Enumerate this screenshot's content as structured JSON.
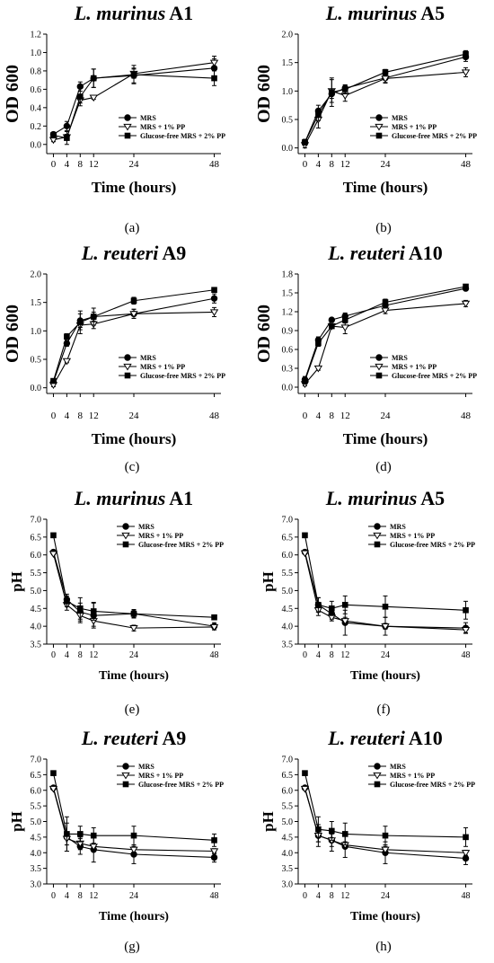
{
  "legend_labels": [
    "MRS",
    "MRS + 1% PP",
    "Glucose-free MRS + 2% PP"
  ],
  "chart_data": [
    {
      "type": "line",
      "panel": "(a)",
      "title": "L. murinus A1",
      "title_species": "L. murinus",
      "title_strain": "A1",
      "xlabel": "Time (hours)",
      "ylabel": "OD 600",
      "x": [
        0,
        4,
        8,
        12,
        24,
        48
      ],
      "xlim": [
        -2,
        50
      ],
      "ylim": [
        -0.1,
        1.2
      ],
      "yticks": [
        "0.0",
        "0.2",
        "0.4",
        "0.6",
        "0.8",
        "1.0",
        "1.2"
      ],
      "ytick_values": [
        0,
        0.2,
        0.4,
        0.6,
        0.8,
        1.0,
        1.2
      ],
      "legend_position": "lower-right",
      "series": [
        {
          "name": "MRS",
          "marker": "circle",
          "values": [
            0.11,
            0.2,
            0.63,
            0.72,
            0.75,
            0.83
          ],
          "errors": [
            0.02,
            0.05,
            0.05,
            0.1,
            0.08,
            0.1
          ]
        },
        {
          "name": "MRS + 1% PP",
          "marker": "triangle-down",
          "values": [
            0.05,
            0.08,
            0.48,
            0.51,
            0.77,
            0.89
          ],
          "errors": [
            0.02,
            0.03,
            0.03,
            0.02,
            0.05,
            0.07
          ]
        },
        {
          "name": "Glucose-free MRS + 2% PP",
          "marker": "square",
          "values": [
            0.1,
            0.07,
            0.52,
            0.72,
            0.76,
            0.72
          ],
          "errors": [
            0.03,
            0.07,
            0.1,
            0.1,
            0.1,
            0.08
          ]
        }
      ]
    },
    {
      "type": "line",
      "panel": "(b)",
      "title": "L. murinus A5",
      "title_species": "L. murinus",
      "title_strain": "A5",
      "xlabel": "Time (hours)",
      "ylabel": "OD 600",
      "x": [
        0,
        4,
        8,
        12,
        24,
        48
      ],
      "xlim": [
        -2,
        50
      ],
      "ylim": [
        -0.1,
        2.0
      ],
      "yticks": [
        "0.0",
        "0.5",
        "1.0",
        "1.5",
        "2.0"
      ],
      "ytick_values": [
        0,
        0.5,
        1.0,
        1.5,
        2.0
      ],
      "legend_position": "lower-right",
      "series": [
        {
          "name": "MRS",
          "marker": "circle",
          "values": [
            0.1,
            0.65,
            0.95,
            1.05,
            1.23,
            1.6
          ],
          "errors": [
            0.05,
            0.1,
            0.08,
            0.05,
            0.08,
            0.08
          ]
        },
        {
          "name": "MRS + 1% PP",
          "marker": "triangle-down",
          "values": [
            0.05,
            0.5,
            1.0,
            0.92,
            1.22,
            1.33
          ],
          "errors": [
            0.05,
            0.15,
            0.2,
            0.1,
            0.08,
            0.08
          ]
        },
        {
          "name": "Glucose-free MRS + 2% PP",
          "marker": "square",
          "values": [
            0.1,
            0.58,
            0.98,
            1.03,
            1.33,
            1.65
          ],
          "errors": [
            0.05,
            0.1,
            0.25,
            0.08,
            0.05,
            0.06
          ]
        }
      ]
    },
    {
      "type": "line",
      "panel": "(c)",
      "title": "L. reuteri A9",
      "title_species": "L. reuteri",
      "title_strain": "A9",
      "xlabel": "Time (hours)",
      "ylabel": "OD 600",
      "x": [
        0,
        4,
        8,
        12,
        24,
        48
      ],
      "xlim": [
        -2,
        50
      ],
      "ylim": [
        -0.1,
        2.0
      ],
      "yticks": [
        "0.0",
        "0.5",
        "1.0",
        "1.5",
        "2.0"
      ],
      "ytick_values": [
        0,
        0.5,
        1.0,
        1.5,
        2.0
      ],
      "legend_position": "lower-right",
      "series": [
        {
          "name": "MRS",
          "marker": "circle",
          "values": [
            0.1,
            0.78,
            1.18,
            1.25,
            1.3,
            1.57
          ],
          "errors": [
            0.05,
            0.05,
            0.12,
            0.08,
            0.08,
            0.08
          ]
        },
        {
          "name": "MRS + 1% PP",
          "marker": "triangle-down",
          "values": [
            0.05,
            0.47,
            1.1,
            1.12,
            1.3,
            1.33
          ],
          "errors": [
            0.03,
            0.03,
            0.08,
            0.08,
            0.08,
            0.08
          ]
        },
        {
          "name": "Glucose-free MRS + 2% PP",
          "marker": "square",
          "values": [
            0.12,
            0.9,
            1.15,
            1.25,
            1.53,
            1.72
          ],
          "errors": [
            0.03,
            0.05,
            0.2,
            0.15,
            0.06,
            0.03
          ]
        }
      ]
    },
    {
      "type": "line",
      "panel": "(d)",
      "title": "L. reuteri A10",
      "title_species": "L. reuteri",
      "title_strain": "A10",
      "xlabel": "Time (hours)",
      "ylabel": "OD 600",
      "x": [
        0,
        4,
        8,
        12,
        24,
        48
      ],
      "xlim": [
        -2,
        50
      ],
      "ylim": [
        -0.1,
        1.8
      ],
      "yticks": [
        "0.0",
        "0.3",
        "0.6",
        "0.9",
        "1.2",
        "1.5",
        "1.8"
      ],
      "ytick_values": [
        0,
        0.3,
        0.6,
        0.9,
        1.2,
        1.5,
        1.8
      ],
      "legend_position": "lower-right",
      "series": [
        {
          "name": "MRS",
          "marker": "circle",
          "values": [
            0.12,
            0.75,
            1.07,
            1.13,
            1.3,
            1.57
          ],
          "errors": [
            0.05,
            0.05,
            0.03,
            0.05,
            0.05,
            0.03
          ]
        },
        {
          "name": "MRS + 1% PP",
          "marker": "triangle-down",
          "values": [
            0.05,
            0.3,
            0.97,
            0.95,
            1.22,
            1.33
          ],
          "errors": [
            0.03,
            0.03,
            0.03,
            0.1,
            0.05,
            0.05
          ]
        },
        {
          "name": "Glucose-free MRS + 2% PP",
          "marker": "square",
          "values": [
            0.1,
            0.7,
            0.97,
            1.07,
            1.35,
            1.6
          ],
          "errors": [
            0.05,
            0.05,
            0.03,
            0.05,
            0.05,
            0.03
          ]
        }
      ]
    },
    {
      "type": "line",
      "panel": "(e)",
      "title": "L. murinus A1",
      "title_species": "L. murinus",
      "title_strain": "A1",
      "xlabel": "Time (hours)",
      "ylabel": "pH",
      "x": [
        0,
        4,
        8,
        12,
        24,
        48
      ],
      "xlim": [
        -2,
        50
      ],
      "ylim": [
        3.5,
        7.0
      ],
      "yticks": [
        "3.5",
        "4.0",
        "4.5",
        "5.0",
        "5.5",
        "6.0",
        "6.5",
        "7.0"
      ],
      "ytick_values": [
        3.5,
        4.0,
        4.5,
        5.0,
        5.5,
        6.0,
        6.5,
        7.0
      ],
      "legend_position": "top-right",
      "series": [
        {
          "name": "MRS",
          "marker": "circle",
          "values": [
            6.08,
            4.75,
            4.4,
            4.3,
            4.35,
            4.0
          ],
          "errors": [
            0.03,
            0.15,
            0.25,
            0.35,
            0.12,
            0.1
          ]
        },
        {
          "name": "MRS + 1% PP",
          "marker": "triangle-down",
          "values": [
            6.03,
            4.6,
            4.3,
            4.15,
            3.95,
            3.98
          ],
          "errors": [
            0.03,
            0.15,
            0.2,
            0.15,
            0.08,
            0.08
          ]
        },
        {
          "name": "Glucose-free MRS + 2% PP",
          "marker": "square",
          "values": [
            6.55,
            4.7,
            4.5,
            4.42,
            4.35,
            4.25
          ],
          "errors": [
            0.03,
            0.15,
            0.3,
            0.25,
            0.1,
            0.05
          ]
        }
      ]
    },
    {
      "type": "line",
      "panel": "(f)",
      "title": "L. murinus A5",
      "title_species": "L. murinus",
      "title_strain": "A5",
      "xlabel": "Time (hours)",
      "ylabel": "pH",
      "x": [
        0,
        4,
        8,
        12,
        24,
        48
      ],
      "xlim": [
        -2,
        50
      ],
      "ylim": [
        3.5,
        7.0
      ],
      "yticks": [
        "3.5",
        "4.0",
        "4.5",
        "5.0",
        "5.5",
        "6.0",
        "6.5",
        "7.0"
      ],
      "ytick_values": [
        3.5,
        4.0,
        4.5,
        5.0,
        5.5,
        6.0,
        6.5,
        7.0
      ],
      "legend_position": "top-right",
      "series": [
        {
          "name": "MRS",
          "marker": "circle",
          "values": [
            6.08,
            4.6,
            4.35,
            4.1,
            4.0,
            3.95
          ],
          "errors": [
            0.03,
            0.2,
            0.15,
            0.35,
            0.25,
            0.15
          ]
        },
        {
          "name": "MRS + 1% PP",
          "marker": "triangle-down",
          "values": [
            6.05,
            4.45,
            4.25,
            4.15,
            4.0,
            3.9
          ],
          "errors": [
            0.03,
            0.15,
            0.1,
            0.1,
            0.08,
            0.08
          ]
        },
        {
          "name": "Glucose-free MRS + 2% PP",
          "marker": "square",
          "values": [
            6.55,
            4.6,
            4.5,
            4.6,
            4.55,
            4.45
          ],
          "errors": [
            0.03,
            0.2,
            0.2,
            0.25,
            0.3,
            0.25
          ]
        }
      ]
    },
    {
      "type": "line",
      "panel": "(g)",
      "title": "L. reuteri A9",
      "title_species": "L. reuteri",
      "title_strain": "A9",
      "xlabel": "Time (hours)",
      "ylabel": "pH",
      "x": [
        0,
        4,
        8,
        12,
        24,
        48
      ],
      "xlim": [
        -2,
        50
      ],
      "ylim": [
        3.0,
        7.0
      ],
      "yticks": [
        "3.0",
        "3.5",
        "4.0",
        "4.5",
        "5.0",
        "5.5",
        "6.0",
        "6.5",
        "7.0"
      ],
      "ytick_values": [
        3.0,
        3.5,
        4.0,
        4.5,
        5.0,
        5.5,
        6.0,
        6.5,
        7.0
      ],
      "legend_position": "top-right",
      "series": [
        {
          "name": "MRS",
          "marker": "circle",
          "values": [
            6.08,
            4.5,
            4.2,
            4.1,
            3.95,
            3.85
          ],
          "errors": [
            0.03,
            0.45,
            0.25,
            0.4,
            0.3,
            0.15
          ]
        },
        {
          "name": "MRS + 1% PP",
          "marker": "triangle-down",
          "values": [
            6.05,
            4.45,
            4.3,
            4.2,
            4.1,
            4.05
          ],
          "errors": [
            0.03,
            0.2,
            0.2,
            0.1,
            0.1,
            0.08
          ]
        },
        {
          "name": "Glucose-free MRS + 2% PP",
          "marker": "square",
          "values": [
            6.55,
            4.6,
            4.6,
            4.55,
            4.55,
            4.4
          ],
          "errors": [
            0.03,
            0.55,
            0.25,
            0.25,
            0.3,
            0.2
          ]
        }
      ]
    },
    {
      "type": "line",
      "panel": "(h)",
      "title": "L. reuteri A10",
      "title_species": "L. reuteri",
      "title_strain": "A10",
      "xlabel": "Time (hours)",
      "ylabel": "pH",
      "x": [
        0,
        4,
        8,
        12,
        24,
        48
      ],
      "xlim": [
        -2,
        50
      ],
      "ylim": [
        3.0,
        7.0
      ],
      "yticks": [
        "3.0",
        "3.5",
        "4.0",
        "4.5",
        "5.0",
        "5.5",
        "6.0",
        "6.5",
        "7.0"
      ],
      "ytick_values": [
        3.0,
        3.5,
        4.0,
        4.5,
        5.0,
        5.5,
        6.0,
        6.5,
        7.0
      ],
      "legend_position": "top-right",
      "series": [
        {
          "name": "MRS",
          "marker": "circle",
          "values": [
            6.08,
            4.55,
            4.4,
            4.2,
            4.0,
            3.82
          ],
          "errors": [
            0.03,
            0.35,
            0.35,
            0.35,
            0.35,
            0.2
          ]
        },
        {
          "name": "MRS + 1% PP",
          "marker": "triangle-down",
          "values": [
            6.05,
            4.55,
            4.4,
            4.25,
            4.1,
            4.0
          ],
          "errors": [
            0.03,
            0.2,
            0.2,
            0.1,
            0.1,
            0.08
          ]
        },
        {
          "name": "Glucose-free MRS + 2% PP",
          "marker": "square",
          "values": [
            6.55,
            4.75,
            4.7,
            4.6,
            4.55,
            4.5
          ],
          "errors": [
            0.03,
            0.4,
            0.3,
            0.35,
            0.3,
            0.3
          ]
        }
      ]
    }
  ]
}
